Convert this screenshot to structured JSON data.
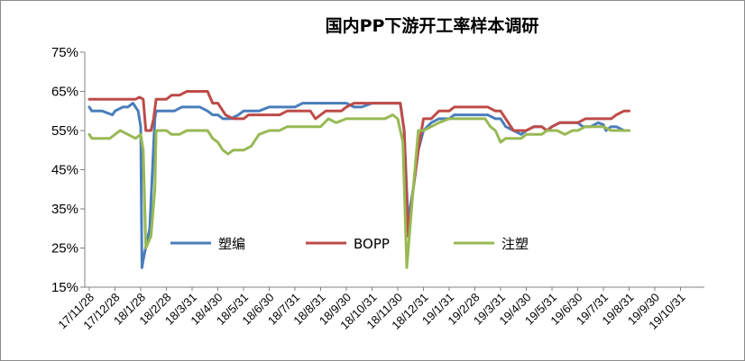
{
  "chart_data": {
    "type": "line",
    "title": "国内PP下游开工率样本调研",
    "ylim": [
      15,
      75
    ],
    "yticks": [
      "15%",
      "25%",
      "35%",
      "45%",
      "55%",
      "65%",
      "75%"
    ],
    "ytick_values": [
      15,
      25,
      35,
      45,
      55,
      65,
      75
    ],
    "grid": false,
    "legend_position": "bottom-inside",
    "x_ticks": [
      "17/11/28",
      "17/12/28",
      "18/1/28",
      "18/2/28",
      "18/3/31",
      "18/4/30",
      "18/5/31",
      "18/6/30",
      "18/7/31",
      "18/8/31",
      "18/9/30",
      "18/10/31",
      "18/11/30",
      "18/12/31",
      "19/1/31",
      "19/2/28",
      "19/3/31",
      "19/4/30",
      "19/5/31",
      "19/6/30",
      "19/7/31",
      "19/8/31",
      "19/9/30",
      "19/10/31"
    ],
    "series": [
      {
        "name": "塑编",
        "color": "#4a7ebb",
        "points": [
          [
            0,
            61
          ],
          [
            0.1,
            60
          ],
          [
            0.5,
            60
          ],
          [
            0.9,
            59
          ],
          [
            1.0,
            60
          ],
          [
            1.3,
            61
          ],
          [
            1.5,
            61
          ],
          [
            1.7,
            62
          ],
          [
            1.9,
            60
          ],
          [
            2.0,
            56
          ],
          [
            2.05,
            20
          ],
          [
            2.1,
            22
          ],
          [
            2.35,
            30
          ],
          [
            2.55,
            58
          ],
          [
            2.6,
            60
          ],
          [
            3.0,
            60
          ],
          [
            3.3,
            60
          ],
          [
            3.6,
            61
          ],
          [
            4.0,
            61
          ],
          [
            4.3,
            61
          ],
          [
            4.6,
            60
          ],
          [
            4.8,
            59
          ],
          [
            5.0,
            59
          ],
          [
            5.2,
            58
          ],
          [
            5.5,
            58
          ],
          [
            5.8,
            59
          ],
          [
            6.0,
            60
          ],
          [
            6.3,
            60
          ],
          [
            6.6,
            60
          ],
          [
            7.0,
            61
          ],
          [
            7.5,
            61
          ],
          [
            8.0,
            61
          ],
          [
            8.3,
            62
          ],
          [
            8.6,
            62
          ],
          [
            9.0,
            62
          ],
          [
            9.5,
            62
          ],
          [
            10.0,
            62
          ],
          [
            10.3,
            61
          ],
          [
            10.6,
            61
          ],
          [
            11.0,
            62
          ],
          [
            11.3,
            62
          ],
          [
            11.8,
            62
          ],
          [
            12.1,
            62
          ],
          [
            12.25,
            55
          ],
          [
            12.4,
            32
          ],
          [
            12.6,
            40
          ],
          [
            12.8,
            50
          ],
          [
            13.0,
            55
          ],
          [
            13.3,
            57
          ],
          [
            13.6,
            58
          ],
          [
            14.0,
            58
          ],
          [
            14.2,
            59
          ],
          [
            14.6,
            59
          ],
          [
            15.0,
            59
          ],
          [
            15.5,
            59
          ],
          [
            15.8,
            58
          ],
          [
            16.0,
            58
          ],
          [
            16.2,
            56
          ],
          [
            16.5,
            55
          ],
          [
            16.8,
            54
          ],
          [
            17.0,
            55
          ],
          [
            17.3,
            56
          ],
          [
            17.6,
            56
          ],
          [
            17.8,
            55
          ],
          [
            18.0,
            56
          ],
          [
            18.3,
            57
          ],
          [
            18.6,
            57
          ],
          [
            19.0,
            57
          ],
          [
            19.2,
            56
          ],
          [
            19.5,
            56
          ],
          [
            19.8,
            57
          ],
          [
            20.0,
            56.5
          ],
          [
            20.1,
            55
          ],
          [
            20.3,
            56
          ],
          [
            20.5,
            56
          ],
          [
            20.8,
            55
          ],
          [
            21.0,
            55
          ]
        ]
      },
      {
        "name": "BOPP",
        "color": "#be4b48",
        "points": [
          [
            0,
            63
          ],
          [
            0.5,
            63
          ],
          [
            1.0,
            63
          ],
          [
            1.5,
            63
          ],
          [
            1.8,
            63
          ],
          [
            1.95,
            63.5
          ],
          [
            2.1,
            63
          ],
          [
            2.2,
            55
          ],
          [
            2.4,
            55
          ],
          [
            2.5,
            58
          ],
          [
            2.6,
            63
          ],
          [
            3.0,
            63
          ],
          [
            3.2,
            64
          ],
          [
            3.5,
            64
          ],
          [
            3.8,
            65
          ],
          [
            4.2,
            65
          ],
          [
            4.6,
            65
          ],
          [
            4.8,
            62
          ],
          [
            5.0,
            62
          ],
          [
            5.3,
            59
          ],
          [
            5.6,
            58
          ],
          [
            6.0,
            58
          ],
          [
            6.2,
            59
          ],
          [
            6.6,
            59
          ],
          [
            7.0,
            59
          ],
          [
            7.4,
            59
          ],
          [
            7.7,
            60
          ],
          [
            8.0,
            60
          ],
          [
            8.3,
            60
          ],
          [
            8.6,
            60
          ],
          [
            8.8,
            58
          ],
          [
            9.0,
            59
          ],
          [
            9.2,
            60
          ],
          [
            9.5,
            60
          ],
          [
            9.8,
            60
          ],
          [
            10.0,
            61
          ],
          [
            10.3,
            62
          ],
          [
            10.6,
            62
          ],
          [
            11.0,
            62
          ],
          [
            11.5,
            62
          ],
          [
            12.0,
            62
          ],
          [
            12.1,
            62
          ],
          [
            12.25,
            55
          ],
          [
            12.4,
            28
          ],
          [
            12.6,
            40
          ],
          [
            12.8,
            50
          ],
          [
            13.0,
            58
          ],
          [
            13.3,
            58
          ],
          [
            13.6,
            60
          ],
          [
            14.0,
            60
          ],
          [
            14.2,
            61
          ],
          [
            14.6,
            61
          ],
          [
            15.0,
            61
          ],
          [
            15.5,
            61
          ],
          [
            15.8,
            60
          ],
          [
            16.0,
            60
          ],
          [
            16.2,
            58
          ],
          [
            16.5,
            55
          ],
          [
            16.8,
            55
          ],
          [
            17.0,
            55
          ],
          [
            17.3,
            56
          ],
          [
            17.6,
            56
          ],
          [
            17.8,
            55
          ],
          [
            18.0,
            56
          ],
          [
            18.3,
            57
          ],
          [
            18.6,
            57
          ],
          [
            19.0,
            57
          ],
          [
            19.3,
            58
          ],
          [
            19.6,
            58
          ],
          [
            20.0,
            58
          ],
          [
            20.3,
            58
          ],
          [
            20.5,
            59
          ],
          [
            20.8,
            60
          ],
          [
            21.0,
            60
          ]
        ]
      },
      {
        "name": "注塑",
        "color": "#98b954",
        "points": [
          [
            0,
            54
          ],
          [
            0.1,
            53
          ],
          [
            0.4,
            53
          ],
          [
            0.8,
            53
          ],
          [
            1.0,
            54
          ],
          [
            1.2,
            55
          ],
          [
            1.5,
            54
          ],
          [
            1.8,
            53
          ],
          [
            2.0,
            54
          ],
          [
            2.1,
            50
          ],
          [
            2.2,
            25
          ],
          [
            2.4,
            28
          ],
          [
            2.55,
            40
          ],
          [
            2.6,
            55
          ],
          [
            3.0,
            55
          ],
          [
            3.2,
            54
          ],
          [
            3.5,
            54
          ],
          [
            3.8,
            55
          ],
          [
            4.2,
            55
          ],
          [
            4.6,
            55
          ],
          [
            4.8,
            53
          ],
          [
            5.0,
            52
          ],
          [
            5.2,
            50
          ],
          [
            5.4,
            49
          ],
          [
            5.6,
            50
          ],
          [
            6.0,
            50
          ],
          [
            6.3,
            51
          ],
          [
            6.6,
            54
          ],
          [
            7.0,
            55
          ],
          [
            7.4,
            55
          ],
          [
            7.7,
            56
          ],
          [
            8.0,
            56
          ],
          [
            8.5,
            56
          ],
          [
            9.0,
            56
          ],
          [
            9.3,
            58
          ],
          [
            9.6,
            57
          ],
          [
            10.0,
            58
          ],
          [
            10.3,
            58
          ],
          [
            10.6,
            58
          ],
          [
            11.0,
            58
          ],
          [
            11.5,
            58
          ],
          [
            11.8,
            59
          ],
          [
            12.0,
            58
          ],
          [
            12.2,
            52
          ],
          [
            12.35,
            20
          ],
          [
            12.6,
            40
          ],
          [
            12.8,
            55
          ],
          [
            13.0,
            55
          ],
          [
            13.3,
            56
          ],
          [
            13.6,
            57
          ],
          [
            14.0,
            58
          ],
          [
            14.5,
            58
          ],
          [
            15.0,
            58
          ],
          [
            15.4,
            58
          ],
          [
            15.6,
            56
          ],
          [
            15.8,
            55
          ],
          [
            16.0,
            52
          ],
          [
            16.2,
            53
          ],
          [
            16.5,
            53
          ],
          [
            16.8,
            53
          ],
          [
            17.0,
            54
          ],
          [
            17.3,
            54
          ],
          [
            17.6,
            54
          ],
          [
            17.8,
            55
          ],
          [
            18.2,
            55
          ],
          [
            18.5,
            54
          ],
          [
            18.8,
            55
          ],
          [
            19.0,
            55
          ],
          [
            19.3,
            56
          ],
          [
            19.6,
            56
          ],
          [
            20.0,
            56
          ],
          [
            20.3,
            55
          ],
          [
            20.6,
            55
          ],
          [
            21.0,
            55
          ]
        ]
      }
    ]
  }
}
